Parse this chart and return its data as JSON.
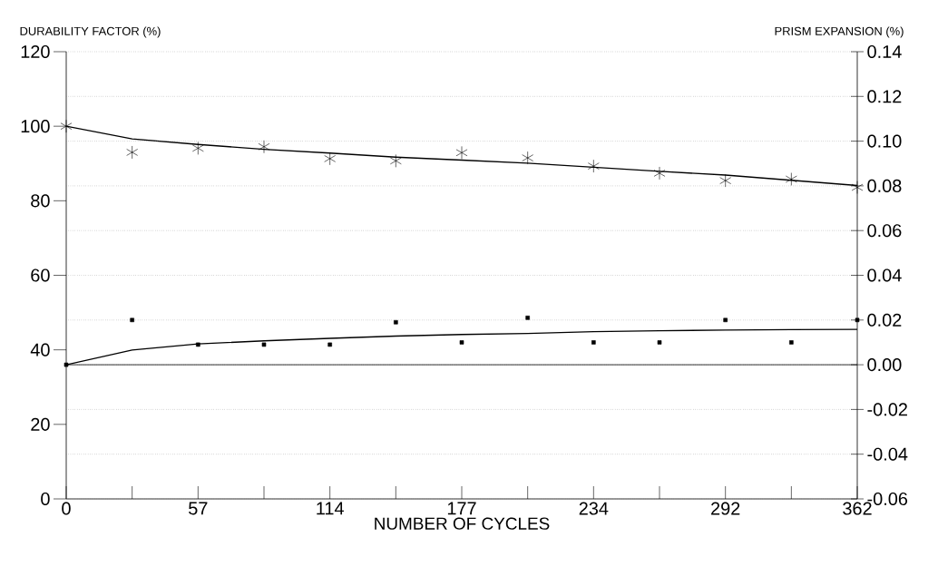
{
  "chart_data": {
    "type": "scatter",
    "xlabel": "NUMBER OF CYCLES",
    "ylabel": "DURABILITY FACTOR (%)",
    "y2label": "PRISM EXPANSION (%)",
    "categories": [
      "0",
      null,
      "57",
      null,
      "114",
      null,
      "177",
      null,
      "234",
      null,
      "292",
      null,
      "362"
    ],
    "series": [
      {
        "type": "scatter",
        "color": "#000000",
        "marker": "cross",
        "values": [
          100,
          93,
          94.1,
          94.5,
          91.3,
          90.7,
          92.9,
          91.5,
          89.3,
          87.4,
          85.4,
          85.8,
          83.6
        ]
      },
      {
        "type": "line",
        "color": "#000000",
        "marker": "none",
        "values": [
          100,
          96.6,
          95.1,
          93.8,
          92.8,
          91.7,
          90.9,
          90.1,
          89.0,
          87.9,
          86.9,
          85.5,
          84.1
        ]
      },
      {
        "type": "scatter",
        "axis": "y2",
        "color": "#000000",
        "marker": "square",
        "values": [
          0,
          0.02,
          0.009,
          0.009,
          0.009,
          0.019,
          0.01,
          0.021,
          0.01,
          0.01,
          0.02,
          0.01,
          0.02
        ]
      },
      {
        "type": "line",
        "axis": "y2",
        "color": "#000000",
        "marker": "none",
        "values": [
          0,
          0.0066,
          0.0093,
          0.0107,
          0.0118,
          0.0128,
          0.0135,
          0.014,
          0.0148,
          0.0152,
          0.0155,
          0.0157,
          0.0158
        ]
      }
    ],
    "ylim": [
      0,
      120
    ],
    "yticks": [
      0,
      20,
      40,
      60,
      80,
      100,
      120
    ],
    "y2lim": [
      -0.06,
      0.14
    ],
    "y2ticks": [
      -0.06,
      -0.04,
      -0.02,
      {
        "value": 0,
        "label": "0.00"
      },
      0.02,
      0.04,
      0.06,
      0.08,
      {
        "value": 0.1,
        "label": "0.10"
      },
      0.12,
      0.14
    ],
    "ref_lines": [
      {
        "axis": "y2",
        "value": 0,
        "line_style": "solid",
        "color": "#000000"
      }
    ],
    "grid": "y"
  }
}
